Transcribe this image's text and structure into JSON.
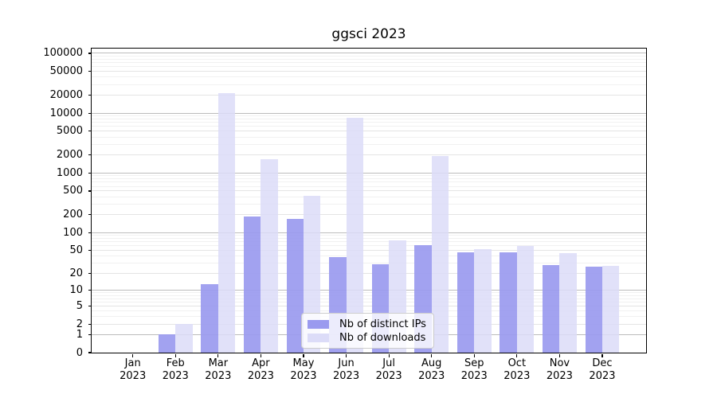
{
  "title": "ggsci 2023",
  "chart_data": {
    "type": "bar",
    "title": "ggsci 2023",
    "categories": [
      {
        "month": "Jan",
        "year": "2023"
      },
      {
        "month": "Feb",
        "year": "2023"
      },
      {
        "month": "Mar",
        "year": "2023"
      },
      {
        "month": "Apr",
        "year": "2023"
      },
      {
        "month": "May",
        "year": "2023"
      },
      {
        "month": "Jun",
        "year": "2023"
      },
      {
        "month": "Jul",
        "year": "2023"
      },
      {
        "month": "Aug",
        "year": "2023"
      },
      {
        "month": "Sep",
        "year": "2023"
      },
      {
        "month": "Oct",
        "year": "2023"
      },
      {
        "month": "Nov",
        "year": "2023"
      },
      {
        "month": "Dec",
        "year": "2023"
      }
    ],
    "series": [
      {
        "name": "Nb of distinct IPs",
        "color": "#9a9aef",
        "values": [
          0,
          1,
          13,
          185,
          170,
          39,
          29,
          62,
          46,
          46,
          28,
          26
        ]
      },
      {
        "name": "Nb of downloads",
        "color": "#dcdcf8",
        "values": [
          0,
          2,
          21500,
          1700,
          420,
          8500,
          75,
          1900,
          52,
          60,
          45,
          27
        ]
      }
    ],
    "y_axis": {
      "scale": "log1p",
      "ticks": [
        100000,
        50000,
        20000,
        10000,
        5000,
        2000,
        1000,
        500,
        200,
        100,
        50,
        20,
        10,
        5,
        2,
        1,
        0
      ],
      "range": [
        0,
        120000
      ]
    },
    "x_axis": {
      "label_year": "2023"
    },
    "grid": true,
    "legend": {
      "position": "lower center"
    },
    "colors": {
      "major_grid": "#bcbcbc",
      "minor_grid": "#e4e4e4",
      "subminor_grid": "#f1f1f1",
      "frame": "#000000"
    }
  }
}
